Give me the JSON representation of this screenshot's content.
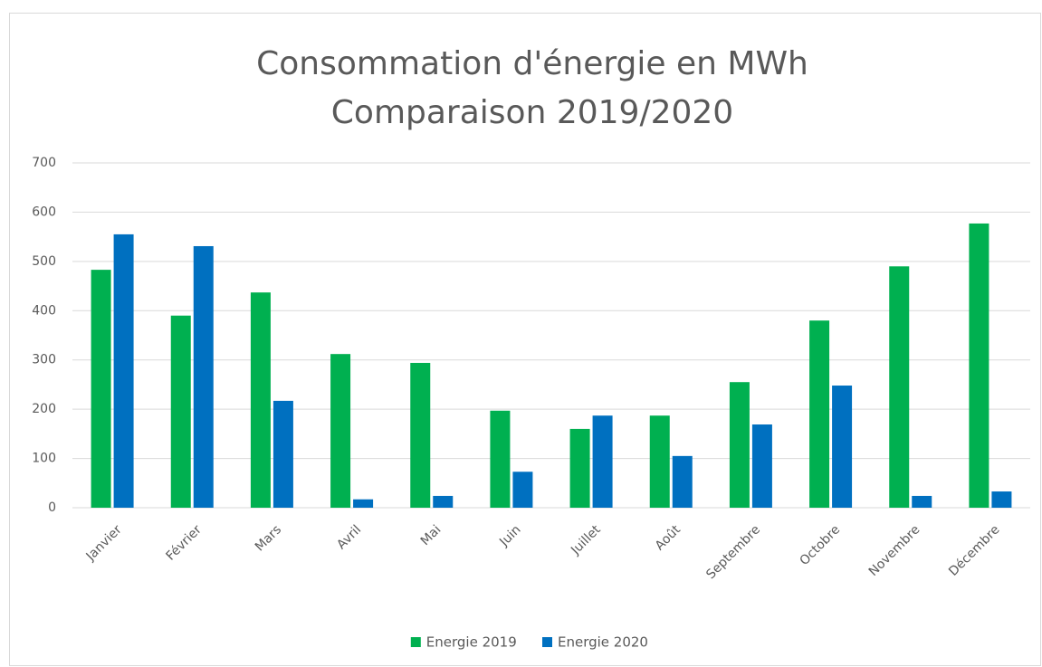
{
  "chart_data": {
    "type": "bar",
    "title": "Consommation d'énergie en MWh",
    "subtitle": "Comparaison 2019/2020",
    "categories": [
      "Janvier",
      "Février",
      "Mars",
      "Avril",
      "Mai",
      "Juin",
      "Juillet",
      "Août",
      "Septembre",
      "Octobre",
      "Novembre",
      "Décembre"
    ],
    "series": [
      {
        "name": "Energie 2019",
        "color": "#00b050",
        "values": [
          483,
          390,
          437,
          312,
          294,
          197,
          160,
          187,
          255,
          380,
          490,
          577
        ]
      },
      {
        "name": "Energie 2020",
        "color": "#0070c0",
        "values": [
          555,
          531,
          217,
          17,
          24,
          73,
          187,
          105,
          169,
          248,
          24,
          33
        ]
      }
    ],
    "ylim": [
      0,
      700
    ],
    "yticks": [
      0,
      100,
      200,
      300,
      400,
      500,
      600,
      700
    ],
    "grid": true,
    "legend": "bottom"
  }
}
